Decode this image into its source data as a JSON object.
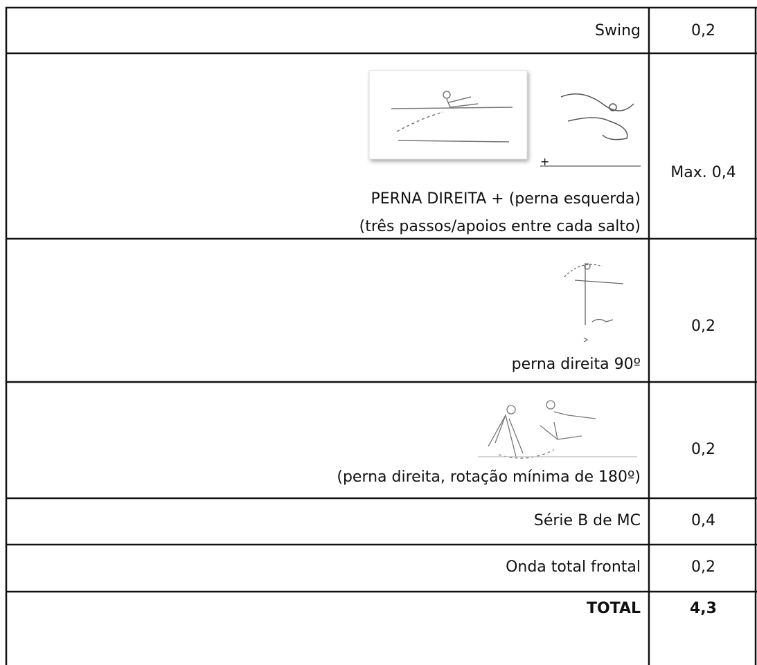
{
  "table": {
    "rows": [
      {
        "description": "Swing",
        "score": "0,2"
      },
      {
        "connector": "+",
        "description": [
          "PERNA DIREITA + (perna esquerda)",
          "(três passos/apoios entre cada salto)"
        ],
        "score": "Max. 0,4"
      },
      {
        "description": "perna direita 90º",
        "score": "0,2"
      },
      {
        "description": "(perna direita, rotação mínima de 180º)",
        "score": "0,2"
      },
      {
        "description": "Série B de MC",
        "score": "0,4"
      },
      {
        "description": "Onda total frontal",
        "score": "0,2"
      },
      {
        "description": "TOTAL",
        "score": "4,3"
      }
    ]
  }
}
